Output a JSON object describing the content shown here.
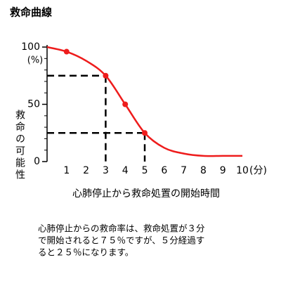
{
  "chart_data": {
    "type": "line",
    "title": "救命曲線",
    "y_label": "救命の可能性",
    "y_unit": "(%)",
    "x_label": "心肺停止から救命処置の開始時間",
    "x_unit": "(分)",
    "x": [
      0,
      1,
      2,
      3,
      4,
      5,
      6,
      7,
      8,
      9,
      10
    ],
    "series": [
      {
        "color": "#ee1c1c",
        "values": [
          100,
          96,
          88,
          75,
          50,
          25,
          12,
          7,
          5,
          5,
          5
        ]
      }
    ],
    "points": {
      "color": "#ee1c1c",
      "x": [
        1,
        3,
        4,
        5
      ],
      "values": [
        96,
        75,
        50,
        25
      ]
    },
    "reference_lines": [
      {
        "x": 3,
        "y": 75
      },
      {
        "x": 5,
        "y": 25
      }
    ],
    "xlim": [
      0,
      10.25
    ],
    "ylim": [
      0,
      100
    ],
    "xticks": [
      1,
      2,
      3,
      4,
      5,
      6,
      7,
      8,
      9,
      10
    ],
    "yticks": [
      0,
      50,
      100
    ],
    "yminorticks": [
      0,
      10,
      20,
      30,
      40,
      50,
      60,
      70,
      80,
      90,
      100
    ],
    "annotation": [
      "心肺停止からの救命率は、救命処置が３分",
      "で開始されると７５％ですが、５分経過す",
      "ると２５％になります。"
    ]
  }
}
